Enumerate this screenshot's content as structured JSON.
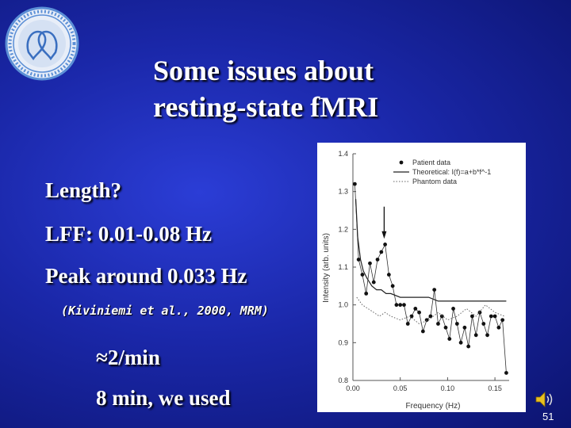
{
  "slide": {
    "title_line1": "Some issues about",
    "title_line2": "resting-state fMRI",
    "bullets": [
      "Length?",
      "LFF: 0.01-0.08 Hz",
      "Peak around 0.033 Hz"
    ],
    "citation": "(Kiviniemi et al., 2000, MRM)",
    "sub_items": [
      "≈2/min",
      "8 min, we used"
    ],
    "page_number": "51",
    "colors": {
      "background": "#1a27a8",
      "text": "#ffffff",
      "logo_ring": "#5b8fd6"
    }
  },
  "icons": {
    "logo": "university-seal-icon",
    "speaker": "speaker-icon"
  },
  "chart_data": {
    "type": "scatter",
    "title": "",
    "xlabel": "Frequency (Hz)",
    "ylabel": "Intensity (arb. units)",
    "xlim": [
      0.0,
      0.165
    ],
    "ylim": [
      0.8,
      1.4
    ],
    "xticks": [
      "0.00",
      "0.05",
      "0.10",
      "0.15"
    ],
    "xtick_values": [
      0.0,
      0.05,
      0.1,
      0.15
    ],
    "yticks": [
      "0.8",
      "0.9",
      "1.0",
      "1.1",
      "1.2",
      "1.3",
      "1.4"
    ],
    "ytick_values": [
      0.8,
      0.9,
      1.0,
      1.1,
      1.2,
      1.3,
      1.4
    ],
    "legend_position": "top-right",
    "legend": [
      "Patient data",
      "Theoretical: I(f)=a+b*f^-1",
      "Phantom data"
    ],
    "annotation": "arrow at peak near 0.033 Hz",
    "arrow_x": 0.033,
    "series": [
      {
        "name": "Patient data",
        "style": "points-line",
        "x": [
          0.002,
          0.006,
          0.01,
          0.014,
          0.018,
          0.022,
          0.026,
          0.03,
          0.034,
          0.038,
          0.042,
          0.046,
          0.05,
          0.054,
          0.058,
          0.062,
          0.066,
          0.07,
          0.074,
          0.078,
          0.082,
          0.086,
          0.09,
          0.094,
          0.098,
          0.102,
          0.106,
          0.11,
          0.114,
          0.118,
          0.122,
          0.126,
          0.13,
          0.134,
          0.138,
          0.142,
          0.146,
          0.15,
          0.154,
          0.158,
          0.162
        ],
        "y": [
          1.32,
          1.12,
          1.08,
          1.03,
          1.11,
          1.06,
          1.12,
          1.14,
          1.16,
          1.08,
          1.05,
          1.0,
          1.0,
          1.0,
          0.95,
          0.97,
          0.99,
          0.98,
          0.93,
          0.96,
          0.97,
          1.04,
          0.95,
          0.97,
          0.94,
          0.91,
          0.99,
          0.95,
          0.9,
          0.94,
          0.89,
          0.97,
          0.92,
          0.98,
          0.95,
          0.92,
          0.97,
          0.97,
          0.94,
          0.96,
          0.82
        ]
      },
      {
        "name": "Theoretical: I(f)=a+b*f^-1",
        "style": "solid-line",
        "x": [
          0.003,
          0.005,
          0.008,
          0.011,
          0.015,
          0.02,
          0.025,
          0.03,
          0.035,
          0.04,
          0.05,
          0.06,
          0.07,
          0.08,
          0.09,
          0.1,
          0.11,
          0.12,
          0.13,
          0.14,
          0.15,
          0.162
        ],
        "y": [
          1.28,
          1.18,
          1.12,
          1.09,
          1.07,
          1.05,
          1.04,
          1.04,
          1.03,
          1.03,
          1.02,
          1.02,
          1.02,
          1.02,
          1.01,
          1.01,
          1.01,
          1.01,
          1.01,
          1.01,
          1.01,
          1.01
        ]
      },
      {
        "name": "Phantom data",
        "style": "dotted-line",
        "x": [
          0.004,
          0.01,
          0.016,
          0.022,
          0.028,
          0.034,
          0.04,
          0.05,
          0.06,
          0.07,
          0.08,
          0.09,
          0.1,
          0.11,
          0.12,
          0.13,
          0.14,
          0.15,
          0.16
        ],
        "y": [
          1.02,
          1.0,
          0.99,
          0.98,
          0.97,
          0.98,
          0.97,
          0.96,
          0.97,
          0.95,
          0.96,
          0.98,
          0.96,
          0.97,
          0.99,
          0.97,
          1.0,
          0.98,
          0.97
        ]
      }
    ]
  }
}
